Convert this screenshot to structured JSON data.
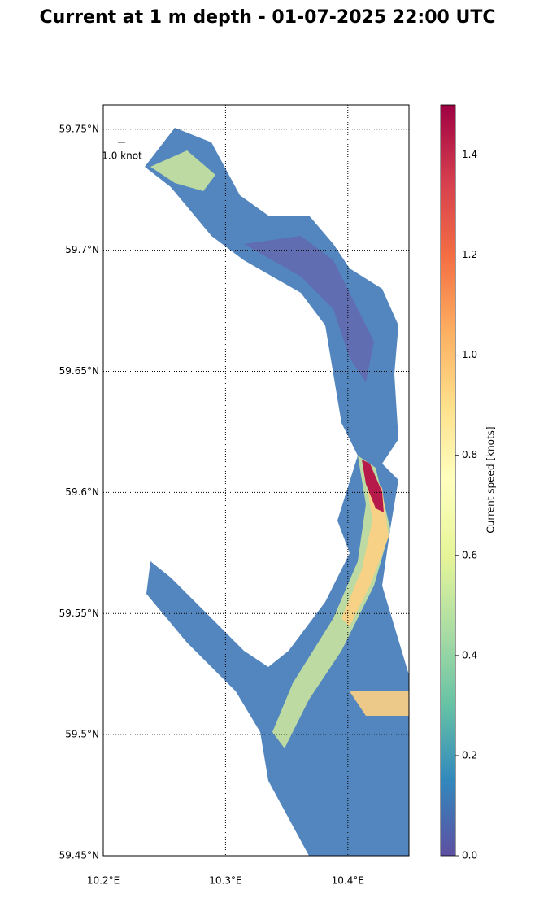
{
  "chart_data": {
    "type": "map",
    "title": "Current at 1 m depth - 01-07-2025 22:00 UTC",
    "xlim": [
      10.2,
      10.45
    ],
    "ylim": [
      59.45,
      59.76
    ],
    "xticks": [
      {
        "value": 10.2,
        "label": "10.2°E"
      },
      {
        "value": 10.3,
        "label": "10.3°E"
      },
      {
        "value": 10.4,
        "label": "10.4°E"
      }
    ],
    "yticks": [
      {
        "value": 59.45,
        "label": "59.45°N"
      },
      {
        "value": 59.5,
        "label": "59.5°N"
      },
      {
        "value": 59.55,
        "label": "59.55°N"
      },
      {
        "value": 59.6,
        "label": "59.6°N"
      },
      {
        "value": 59.65,
        "label": "59.65°N"
      },
      {
        "value": 59.7,
        "label": "59.7°N"
      },
      {
        "value": 59.75,
        "label": "59.75°N"
      }
    ],
    "grid": true,
    "reference_arrow": {
      "value": 1.0,
      "label": "1.0 knot"
    },
    "colorbar": {
      "label": "Current speed [knots]",
      "lim": [
        0,
        1.5
      ],
      "ticks": [
        {
          "value": 0,
          "label": "0.0"
        },
        {
          "value": 0.2,
          "label": "0.2"
        },
        {
          "value": 0.4,
          "label": "0.4"
        },
        {
          "value": 0.6,
          "label": "0.6"
        },
        {
          "value": 0.8,
          "label": "0.8"
        },
        {
          "value": 1.0,
          "label": "1.0"
        },
        {
          "value": 1.2,
          "label": "1.2"
        },
        {
          "value": 1.4,
          "label": "1.4"
        }
      ],
      "colors": [
        "#5e4fa2",
        "#3288bd",
        "#66c2a5",
        "#abdda4",
        "#e6f598",
        "#ffffbf",
        "#fee08b",
        "#fdae61",
        "#f46d43",
        "#d53e4f",
        "#9e0142"
      ]
    }
  }
}
